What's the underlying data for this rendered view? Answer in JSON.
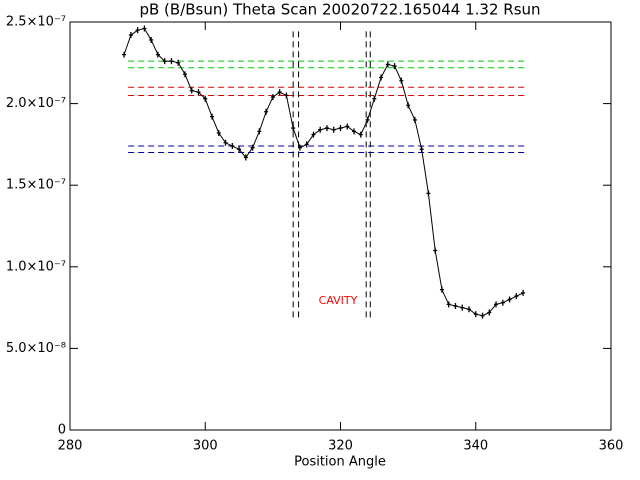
{
  "chart_data": {
    "type": "line",
    "title": "pB (B/Bsun) Theta Scan 20020722.165044 1.32 Rsun",
    "x_label": "Position Angle",
    "annotation": "CAVITY",
    "annotation_color": "#ff0000",
    "xlim": [
      280,
      360
    ],
    "xticks": [
      280,
      300,
      320,
      340,
      360
    ],
    "ylim": [
      0,
      2.5e-07
    ],
    "yticks": [
      0,
      {
        "value": 5e-08,
        "label": "5.0×10⁻⁸"
      },
      {
        "value": 1e-07,
        "label": "1.0×10⁻⁷"
      },
      {
        "value": 1.5e-07,
        "label": "1.5×10⁻⁷"
      },
      {
        "value": 2e-07,
        "label": "2.0×10⁻⁷"
      },
      {
        "value": 2.5e-07,
        "label": "2.5×10⁻⁷"
      }
    ],
    "series": [
      {
        "color": "#000000",
        "x": [
          288,
          289,
          290,
          291,
          292,
          293,
          294,
          295,
          296,
          297,
          298,
          299,
          300,
          301,
          302,
          303,
          304,
          305,
          306,
          307,
          308,
          309,
          310,
          311,
          312,
          313,
          314,
          315,
          316,
          317,
          318,
          319,
          320,
          321,
          322,
          323,
          324,
          325,
          326,
          327,
          328,
          329,
          330,
          331,
          332,
          333,
          334,
          335,
          336,
          337,
          338,
          339,
          340,
          341,
          342,
          343,
          344,
          345,
          346,
          347
        ],
        "values": [
          2.3e-07,
          2.42e-07,
          2.45e-07,
          2.46e-07,
          2.39e-07,
          2.3e-07,
          2.26e-07,
          2.26e-07,
          2.25e-07,
          2.18e-07,
          2.08e-07,
          2.07e-07,
          2.03e-07,
          1.92e-07,
          1.82e-07,
          1.76e-07,
          1.74e-07,
          1.72e-07,
          1.67e-07,
          1.73e-07,
          1.83e-07,
          1.95e-07,
          2.04e-07,
          2.07e-07,
          2.05e-07,
          1.85e-07,
          1.73e-07,
          1.75e-07,
          1.81e-07,
          1.84e-07,
          1.85e-07,
          1.84e-07,
          1.85e-07,
          1.86e-07,
          1.83e-07,
          1.81e-07,
          1.9e-07,
          2.03e-07,
          2.16e-07,
          2.24e-07,
          2.23e-07,
          2.14e-07,
          1.99e-07,
          1.9e-07,
          1.72e-07,
          1.45e-07,
          1.1e-07,
          8.6e-08,
          7.7e-08,
          7.6e-08,
          7.5e-08,
          7.4e-08,
          7.1e-08,
          7e-08,
          7.2e-08,
          7.7e-08,
          7.8e-08,
          8e-08,
          8.2e-08,
          8.4e-08
        ]
      }
    ],
    "reference_lines": [
      {
        "value": 2.26e-07,
        "color": "#00cc00"
      },
      {
        "value": 2.22e-07,
        "color": "#00cc00"
      },
      {
        "value": 2.1e-07,
        "color": "#dd0000"
      },
      {
        "value": 2.05e-07,
        "color": "#dd0000"
      },
      {
        "value": 1.74e-07,
        "color": "#0000aa"
      },
      {
        "value": 1.7e-07,
        "color": "#0000aa"
      }
    ],
    "reference_xrange": [
      288.6,
      347.6
    ],
    "cavity_lines": [
      313.0,
      313.8,
      323.8,
      324.4
    ],
    "cavity_yrange": [
      6.9e-08,
      2.45e-07
    ]
  }
}
